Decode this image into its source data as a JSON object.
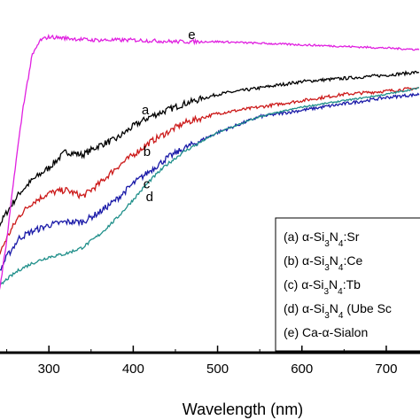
{
  "chart_data": {
    "type": "line",
    "title": "",
    "xlabel": "Wavelength (nm)",
    "ylabel": "",
    "xlim": [
      200,
      740
    ],
    "x_ticks": [
      300,
      400,
      500,
      600,
      700
    ],
    "x_tick_labels": [
      "300",
      "400",
      "500",
      "600",
      "700"
    ],
    "grid": false,
    "legend_position": "bottom-right",
    "legend_entries": [
      {
        "prefix": "(a)",
        "text": "α-Si",
        "sub1": "3",
        "mid": "N",
        "sub2": "4",
        "suffix": ":Sr"
      },
      {
        "prefix": "(b)",
        "text": "α-Si",
        "sub1": "3",
        "mid": "N",
        "sub2": "4",
        "suffix": ":Ce"
      },
      {
        "prefix": "(c)",
        "text": "α-Si",
        "sub1": "3",
        "mid": "N",
        "sub2": "4",
        "suffix": ":Tb"
      },
      {
        "prefix": "(d)",
        "text": "α-Si",
        "sub1": "3",
        "mid": "N",
        "sub2": "4",
        "suffix": " (Ube Sc"
      },
      {
        "prefix": "(e)",
        "text": "Ca-α-Sialon",
        "sub1": "",
        "mid": "",
        "sub2": "",
        "suffix": ""
      }
    ],
    "series": [
      {
        "name": "a",
        "color": "#000000",
        "noise": 0.01,
        "x": [
          200,
          220,
          235,
          250,
          265,
          280,
          300,
          320,
          340,
          360,
          380,
          400,
          420,
          440,
          460,
          500,
          550,
          600,
          650,
          700,
          740
        ],
        "y": [
          0.26,
          0.3,
          0.37,
          0.44,
          0.5,
          0.54,
          0.58,
          0.63,
          0.62,
          0.65,
          0.67,
          0.71,
          0.74,
          0.76,
          0.78,
          0.81,
          0.83,
          0.85,
          0.86,
          0.87,
          0.88
        ]
      },
      {
        "name": "b",
        "color": "#cc1a1a",
        "noise": 0.01,
        "x": [
          200,
          220,
          235,
          250,
          265,
          280,
          300,
          320,
          340,
          360,
          380,
          400,
          420,
          440,
          460,
          500,
          550,
          600,
          650,
          700,
          740
        ],
        "y": [
          0.18,
          0.21,
          0.27,
          0.36,
          0.43,
          0.47,
          0.5,
          0.51,
          0.49,
          0.53,
          0.58,
          0.62,
          0.66,
          0.69,
          0.72,
          0.75,
          0.77,
          0.79,
          0.81,
          0.82,
          0.83
        ]
      },
      {
        "name": "c",
        "color": "#1a1aa8",
        "noise": 0.01,
        "x": [
          200,
          220,
          235,
          250,
          265,
          280,
          300,
          320,
          340,
          360,
          380,
          400,
          420,
          440,
          460,
          500,
          550,
          600,
          650,
          700,
          740
        ],
        "y": [
          0.11,
          0.15,
          0.22,
          0.3,
          0.36,
          0.38,
          0.4,
          0.41,
          0.41,
          0.44,
          0.48,
          0.53,
          0.57,
          0.61,
          0.64,
          0.69,
          0.74,
          0.76,
          0.78,
          0.8,
          0.81
        ]
      },
      {
        "name": "d",
        "color": "#1f8f8a",
        "noise": 0.005,
        "x": [
          200,
          220,
          235,
          250,
          265,
          280,
          300,
          320,
          340,
          360,
          380,
          400,
          420,
          440,
          460,
          500,
          550,
          600,
          650,
          700,
          740
        ],
        "y": [
          0.06,
          0.12,
          0.19,
          0.23,
          0.26,
          0.28,
          0.3,
          0.31,
          0.33,
          0.37,
          0.42,
          0.48,
          0.54,
          0.59,
          0.63,
          0.69,
          0.74,
          0.77,
          0.79,
          0.81,
          0.83
        ]
      },
      {
        "name": "e",
        "color": "#e020e0",
        "noise": 0.006,
        "x": [
          200,
          220,
          235,
          250,
          260,
          270,
          280,
          290,
          300,
          350,
          400,
          450,
          500,
          550,
          600,
          650,
          700,
          740
        ],
        "y": [
          0.01,
          0.02,
          0.08,
          0.35,
          0.58,
          0.78,
          0.93,
          0.98,
          0.99,
          0.98,
          0.98,
          0.975,
          0.975,
          0.97,
          0.965,
          0.96,
          0.955,
          0.95
        ]
      }
    ]
  }
}
